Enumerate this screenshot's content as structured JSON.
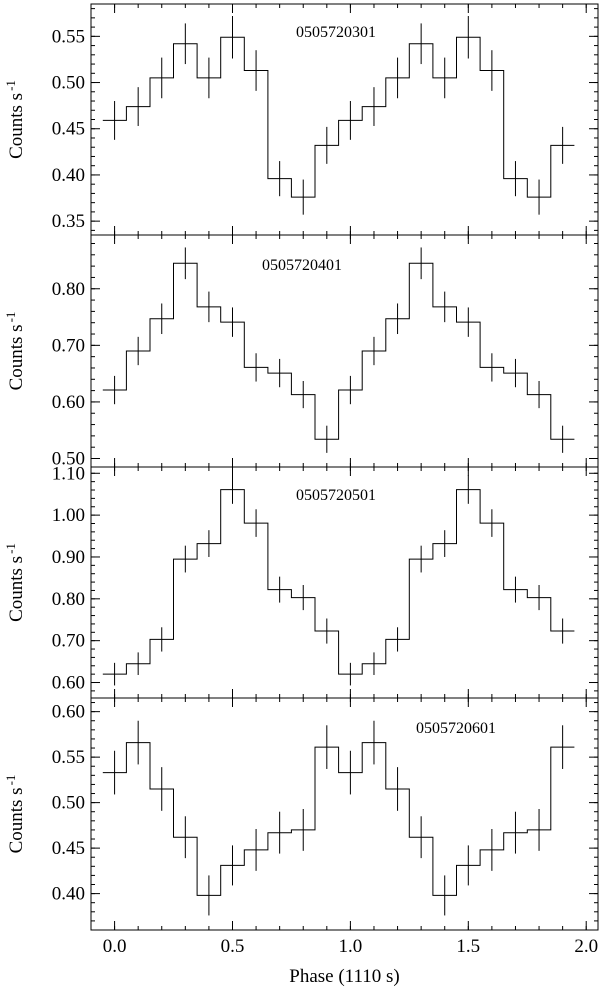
{
  "chart_data": {
    "type": "step",
    "xlabel": "Phase (1110 s)",
    "xlim": [
      -0.1,
      2.05
    ],
    "xticks": [
      "0.0",
      "0.5",
      "1.0",
      "1.5",
      "2.0"
    ],
    "xtick_values": [
      0.0,
      0.5,
      1.0,
      1.5,
      2.0
    ],
    "x": [
      0.0,
      0.1,
      0.2,
      0.3,
      0.4,
      0.5,
      0.6,
      0.7,
      0.8,
      0.9,
      1.0,
      1.1,
      1.2,
      1.3,
      1.4,
      1.5,
      1.6,
      1.7,
      1.8,
      1.9
    ],
    "bin_width": 0.1,
    "panels": [
      {
        "obsid": "0505720301",
        "ylabel": "Counts s",
        "ylabel_sup": "-1",
        "ylim": [
          0.335,
          0.585
        ],
        "yticks": [
          "0.35",
          "0.40",
          "0.45",
          "0.50",
          "0.55"
        ],
        "ytick_values": [
          0.35,
          0.4,
          0.45,
          0.5,
          0.55
        ],
        "values": [
          0.459,
          0.474,
          0.505,
          0.542,
          0.505,
          0.549,
          0.513,
          0.396,
          0.376,
          0.432,
          0.459,
          0.474,
          0.505,
          0.542,
          0.505,
          0.549,
          0.513,
          0.396,
          0.376,
          0.432
        ],
        "errors": [
          0.021,
          0.021,
          0.022,
          0.022,
          0.022,
          0.023,
          0.022,
          0.019,
          0.019,
          0.02,
          0.021,
          0.021,
          0.022,
          0.022,
          0.022,
          0.023,
          0.022,
          0.019,
          0.019,
          0.02
        ]
      },
      {
        "obsid": "0505720401",
        "ylabel": "Counts s",
        "ylabel_sup": "-1",
        "ylim": [
          0.485,
          0.895
        ],
        "yticks": [
          "0.50",
          "0.60",
          "0.70",
          "0.80"
        ],
        "ytick_values": [
          0.5,
          0.6,
          0.7,
          0.8
        ],
        "values": [
          0.621,
          0.69,
          0.747,
          0.845,
          0.768,
          0.741,
          0.661,
          0.651,
          0.613,
          0.534,
          0.621,
          0.69,
          0.747,
          0.845,
          0.768,
          0.741,
          0.661,
          0.651,
          0.613,
          0.534
        ],
        "errors": [
          0.025,
          0.025,
          0.027,
          0.028,
          0.027,
          0.026,
          0.025,
          0.025,
          0.024,
          0.024,
          0.025,
          0.025,
          0.027,
          0.028,
          0.027,
          0.026,
          0.025,
          0.025,
          0.024,
          0.024
        ]
      },
      {
        "obsid": "0505720501",
        "ylabel": "Counts s",
        "ylabel_sup": "-1",
        "ylim": [
          0.563,
          1.115
        ],
        "yticks": [
          "0.60",
          "0.70",
          "0.80",
          "0.90",
          "1.00",
          "1.10"
        ],
        "ytick_values": [
          0.6,
          0.7,
          0.8,
          0.9,
          1.0,
          1.1
        ],
        "values": [
          0.62,
          0.645,
          0.703,
          0.895,
          0.932,
          1.061,
          0.981,
          0.822,
          0.803,
          0.723,
          0.62,
          0.645,
          0.703,
          0.895,
          0.932,
          1.061,
          0.981,
          0.822,
          0.803,
          0.723
        ],
        "errors": [
          0.027,
          0.027,
          0.029,
          0.032,
          0.032,
          0.034,
          0.033,
          0.031,
          0.03,
          0.03,
          0.027,
          0.027,
          0.029,
          0.032,
          0.032,
          0.034,
          0.033,
          0.031,
          0.03,
          0.03
        ]
      },
      {
        "obsid": "0505720601",
        "ylabel": "Counts s",
        "ylabel_sup": "-1",
        "ylim": [
          0.36,
          0.615
        ],
        "yticks": [
          "0.40",
          "0.45",
          "0.50",
          "0.55",
          "0.60"
        ],
        "ytick_values": [
          0.4,
          0.45,
          0.5,
          0.55,
          0.6
        ],
        "values": [
          0.533,
          0.566,
          0.515,
          0.462,
          0.398,
          0.431,
          0.448,
          0.467,
          0.47,
          0.561,
          0.533,
          0.566,
          0.515,
          0.462,
          0.398,
          0.431,
          0.448,
          0.467,
          0.47,
          0.561
        ],
        "errors": [
          0.024,
          0.024,
          0.024,
          0.023,
          0.022,
          0.022,
          0.023,
          0.023,
          0.023,
          0.024,
          0.024,
          0.024,
          0.024,
          0.023,
          0.022,
          0.022,
          0.023,
          0.023,
          0.023,
          0.024
        ]
      }
    ]
  }
}
